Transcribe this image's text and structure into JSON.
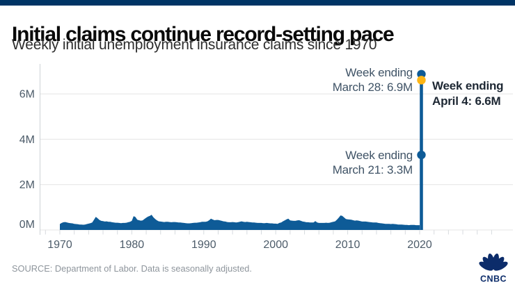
{
  "page": {
    "top_bar_color": "#003465",
    "background": "#ffffff"
  },
  "header": {
    "title": "Initial claims continue record-setting pace",
    "subtitle": "Weekly initial unemployment insurance claims since 1970"
  },
  "chart_data": {
    "type": "area",
    "title": "Initial claims continue record-setting pace",
    "subtitle": "Weekly initial unemployment insurance claims since 1970",
    "grid": "horizontal",
    "legend": "none",
    "x_axis": {
      "tick_years": [
        1970,
        1980,
        1990,
        2000,
        2010,
        2020
      ],
      "minor_tick_step_years": 2,
      "range": [
        1967.5,
        2033
      ]
    },
    "y_axis": {
      "unit": "millions of claims",
      "range": [
        0,
        7.3
      ],
      "ticks": [
        {
          "label": "0M",
          "value": 0
        },
        {
          "label": "2M",
          "value": 2
        },
        {
          "label": "4M",
          "value": 4
        },
        {
          "label": "6M",
          "value": 6
        }
      ]
    },
    "series": {
      "name": "Weekly initial unemployment insurance claims",
      "color": "#0e5b97",
      "x_start": 1970,
      "x_step_years": 0.25,
      "values_unit": "millions",
      "values_millions": [
        0.26,
        0.31,
        0.34,
        0.35,
        0.33,
        0.31,
        0.3,
        0.29,
        0.27,
        0.26,
        0.25,
        0.24,
        0.24,
        0.23,
        0.24,
        0.26,
        0.28,
        0.3,
        0.33,
        0.45,
        0.58,
        0.51,
        0.44,
        0.4,
        0.39,
        0.37,
        0.38,
        0.36,
        0.36,
        0.34,
        0.33,
        0.32,
        0.32,
        0.31,
        0.3,
        0.31,
        0.31,
        0.32,
        0.34,
        0.36,
        0.4,
        0.61,
        0.57,
        0.45,
        0.43,
        0.41,
        0.42,
        0.48,
        0.54,
        0.59,
        0.62,
        0.67,
        0.56,
        0.48,
        0.42,
        0.38,
        0.37,
        0.36,
        0.35,
        0.36,
        0.36,
        0.35,
        0.34,
        0.35,
        0.35,
        0.34,
        0.33,
        0.33,
        0.32,
        0.31,
        0.3,
        0.29,
        0.29,
        0.3,
        0.31,
        0.32,
        0.32,
        0.33,
        0.34,
        0.36,
        0.36,
        0.36,
        0.38,
        0.43,
        0.5,
        0.46,
        0.43,
        0.44,
        0.44,
        0.42,
        0.4,
        0.38,
        0.37,
        0.35,
        0.34,
        0.34,
        0.35,
        0.34,
        0.33,
        0.34,
        0.36,
        0.38,
        0.36,
        0.35,
        0.36,
        0.35,
        0.34,
        0.33,
        0.33,
        0.32,
        0.31,
        0.31,
        0.31,
        0.3,
        0.3,
        0.31,
        0.3,
        0.29,
        0.29,
        0.28,
        0.28,
        0.27,
        0.31,
        0.33,
        0.38,
        0.42,
        0.47,
        0.5,
        0.42,
        0.41,
        0.4,
        0.4,
        0.42,
        0.43,
        0.4,
        0.37,
        0.36,
        0.34,
        0.34,
        0.33,
        0.33,
        0.33,
        0.39,
        0.33,
        0.31,
        0.31,
        0.31,
        0.31,
        0.32,
        0.31,
        0.32,
        0.34,
        0.36,
        0.38,
        0.45,
        0.54,
        0.64,
        0.62,
        0.55,
        0.48,
        0.47,
        0.46,
        0.45,
        0.43,
        0.41,
        0.42,
        0.41,
        0.39,
        0.37,
        0.37,
        0.37,
        0.36,
        0.35,
        0.34,
        0.33,
        0.33,
        0.33,
        0.31,
        0.3,
        0.29,
        0.28,
        0.27,
        0.27,
        0.27,
        0.26,
        0.27,
        0.26,
        0.25,
        0.24,
        0.24,
        0.24,
        0.23,
        0.22,
        0.22,
        0.21,
        0.22,
        0.22,
        0.22,
        0.21,
        0.21,
        0.21
      ]
    },
    "spike": {
      "color": "#0e5b97",
      "points": [
        {
          "id": "march-21",
          "week_ending": "March 21",
          "x": 2020.22,
          "value_millions": 3.307,
          "marker_color": "#0e5b97"
        },
        {
          "id": "march-28",
          "week_ending": "March 28",
          "x": 2020.24,
          "value_millions": 6.867,
          "marker_color": "#0e5b97"
        },
        {
          "id": "april-4",
          "week_ending": "April 4",
          "x": 2020.26,
          "value_millions": 6.606,
          "marker_color": "#fdb515"
        }
      ]
    },
    "annotations": [
      {
        "id": "march-28",
        "line1": "Week ending",
        "line2": "March 28: 6.9M",
        "bold": false
      },
      {
        "id": "april-4",
        "line1": "Week ending",
        "line2": "April 4: 6.6M",
        "bold": true
      },
      {
        "id": "march-21",
        "line1": "Week ending",
        "line2": "March 21: 3.3M",
        "bold": false
      }
    ]
  },
  "footer": {
    "source": "SOURCE: Department of Labor. Data is seasonally adjusted.",
    "logo_text": "CNBC"
  },
  "colors": {
    "area_blue": "#0e5b97",
    "marker_yellow": "#fdb515",
    "gridline": "#e4e4e4",
    "axis_line": "#cdd2d6",
    "axis_label": "#4c5b69",
    "annotation_text": "#3f5366",
    "annotation_bold_text": "#1d2733",
    "logo_navy": "#0c2c6a"
  }
}
